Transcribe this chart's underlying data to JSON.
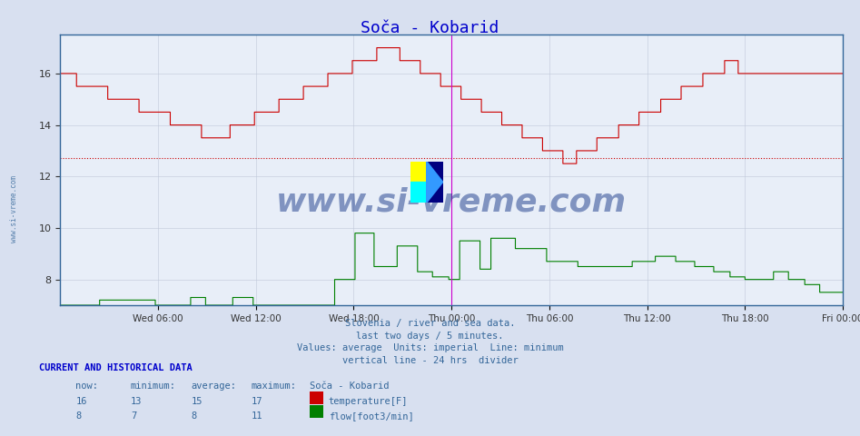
{
  "title": "Soča - Kobarid",
  "title_color": "#0000cc",
  "background_color": "#d8e0f0",
  "plot_bg_color": "#e8eef8",
  "grid_color": "#c0c8d8",
  "tick_labels": [
    "Wed 06:00",
    "Wed 12:00",
    "Wed 18:00",
    "Thu 00:00",
    "Thu 06:00",
    "Thu 12:00",
    "Thu 18:00",
    "Fri 00:00"
  ],
  "tick_positions": [
    72,
    144,
    216,
    288,
    360,
    432,
    504,
    576
  ],
  "ylim": [
    7,
    17.5
  ],
  "yticks": [
    8,
    10,
    12,
    14,
    16
  ],
  "temp_color": "#cc0000",
  "flow_color": "#008000",
  "avg_line_color": "#cc0000",
  "temp_average": 12.7,
  "vertical_line_color": "#cc00cc",
  "subtitle_lines": [
    "Slovenia / river and sea data.",
    "last two days / 5 minutes.",
    "Values: average  Units: imperial  Line: minimum",
    "vertical line - 24 hrs  divider"
  ],
  "footer_header": "CURRENT AND HISTORICAL DATA",
  "footer_color": "#0000cc",
  "text_color": "#336699",
  "col_headers": [
    "now:",
    "minimum:",
    "average:",
    "maximum:",
    "Soča - Kobarid"
  ],
  "temp_row": [
    "16",
    "13",
    "15",
    "17",
    "temperature[F]",
    "#cc0000"
  ],
  "flow_row": [
    "8",
    "7",
    "8",
    "11",
    "flow[foot3/min]",
    "#008000"
  ],
  "n_points": 577,
  "watermark_text": "www.si-vreme.com",
  "watermark_color": "#1a3a8a",
  "watermark_alpha": 0.5,
  "side_text": "www.si-vreme.com"
}
